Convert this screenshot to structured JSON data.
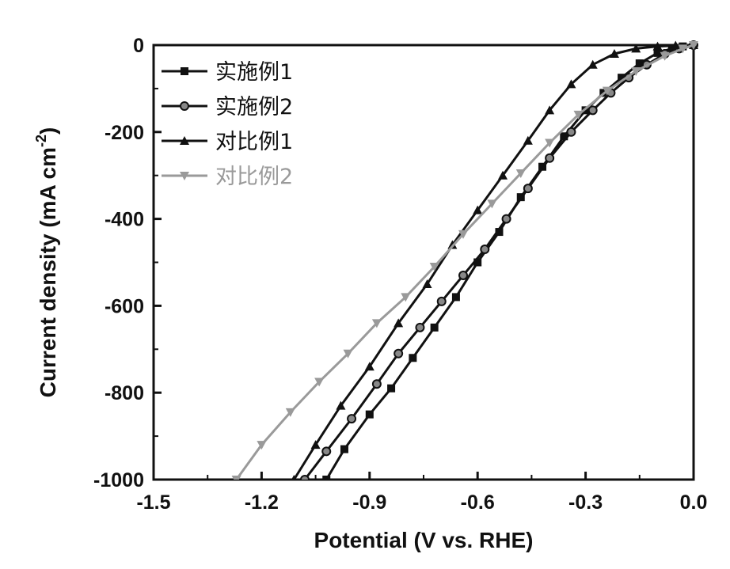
{
  "chart_data": {
    "type": "line",
    "xlabel": "Potential (V vs. RHE)",
    "ylabel": "Current density (mA cm",
    "ylabel_sup": "-2",
    "ylabel_end": ")",
    "xlim": [
      -1.5,
      0.0
    ],
    "ylim": [
      -1000,
      0
    ],
    "xticks": [
      -1.5,
      -1.2,
      -0.9,
      -0.6,
      -0.3,
      0.0
    ],
    "xtick_labels": [
      "-1.5",
      "-1.2",
      "-0.9",
      "-0.6",
      "-0.3",
      "0.0"
    ],
    "yticks": [
      0,
      -200,
      -400,
      -600,
      -800,
      -1000
    ],
    "ytick_labels": [
      "0",
      "-200",
      "-400",
      "-600",
      "-800",
      "-1000"
    ],
    "grid": false,
    "legend_position": "top-left",
    "series": [
      {
        "name": "实施例1",
        "marker": "square",
        "color": "#111111",
        "points": [
          [
            -1.02,
            -1000
          ],
          [
            -0.97,
            -930
          ],
          [
            -0.9,
            -850
          ],
          [
            -0.84,
            -790
          ],
          [
            -0.78,
            -720
          ],
          [
            -0.72,
            -650
          ],
          [
            -0.66,
            -580
          ],
          [
            -0.6,
            -500
          ],
          [
            -0.54,
            -430
          ],
          [
            -0.48,
            -350
          ],
          [
            -0.42,
            -280
          ],
          [
            -0.36,
            -210
          ],
          [
            -0.3,
            -150
          ],
          [
            -0.25,
            -110
          ],
          [
            -0.2,
            -75
          ],
          [
            -0.15,
            -42
          ],
          [
            -0.1,
            -18
          ],
          [
            -0.06,
            -8
          ],
          [
            -0.03,
            -3
          ],
          [
            0.0,
            0
          ]
        ]
      },
      {
        "name": "实施例2",
        "marker": "circle",
        "color": "#111111",
        "points": [
          [
            -1.08,
            -1000
          ],
          [
            -1.02,
            -935
          ],
          [
            -0.95,
            -860
          ],
          [
            -0.88,
            -780
          ],
          [
            -0.82,
            -710
          ],
          [
            -0.76,
            -650
          ],
          [
            -0.7,
            -590
          ],
          [
            -0.64,
            -530
          ],
          [
            -0.58,
            -470
          ],
          [
            -0.52,
            -400
          ],
          [
            -0.46,
            -330
          ],
          [
            -0.4,
            -260
          ],
          [
            -0.34,
            -200
          ],
          [
            -0.28,
            -150
          ],
          [
            -0.23,
            -110
          ],
          [
            -0.18,
            -75
          ],
          [
            -0.13,
            -45
          ],
          [
            -0.08,
            -20
          ],
          [
            -0.04,
            -8
          ],
          [
            0.0,
            0
          ]
        ]
      },
      {
        "name": "对比例1",
        "marker": "triangle-up",
        "color": "#111111",
        "points": [
          [
            -1.11,
            -1000
          ],
          [
            -1.05,
            -920
          ],
          [
            -0.98,
            -830
          ],
          [
            -0.9,
            -740
          ],
          [
            -0.82,
            -640
          ],
          [
            -0.74,
            -550
          ],
          [
            -0.67,
            -460
          ],
          [
            -0.6,
            -380
          ],
          [
            -0.53,
            -300
          ],
          [
            -0.46,
            -220
          ],
          [
            -0.4,
            -150
          ],
          [
            -0.34,
            -90
          ],
          [
            -0.28,
            -45
          ],
          [
            -0.22,
            -20
          ],
          [
            -0.16,
            -8
          ],
          [
            -0.1,
            -3
          ],
          [
            -0.05,
            -1
          ],
          [
            0.0,
            0
          ]
        ]
      },
      {
        "name": "对比例2",
        "marker": "triangle-down",
        "color": "#9a9a9a",
        "points": [
          [
            -1.27,
            -1000
          ],
          [
            -1.2,
            -920
          ],
          [
            -1.12,
            -845
          ],
          [
            -1.04,
            -775
          ],
          [
            -0.96,
            -710
          ],
          [
            -0.88,
            -640
          ],
          [
            -0.8,
            -580
          ],
          [
            -0.72,
            -510
          ],
          [
            -0.64,
            -435
          ],
          [
            -0.56,
            -365
          ],
          [
            -0.48,
            -295
          ],
          [
            -0.4,
            -225
          ],
          [
            -0.32,
            -160
          ],
          [
            -0.24,
            -105
          ],
          [
            -0.16,
            -60
          ],
          [
            -0.08,
            -25
          ],
          [
            -0.03,
            -8
          ],
          [
            0.0,
            0
          ]
        ]
      }
    ]
  }
}
